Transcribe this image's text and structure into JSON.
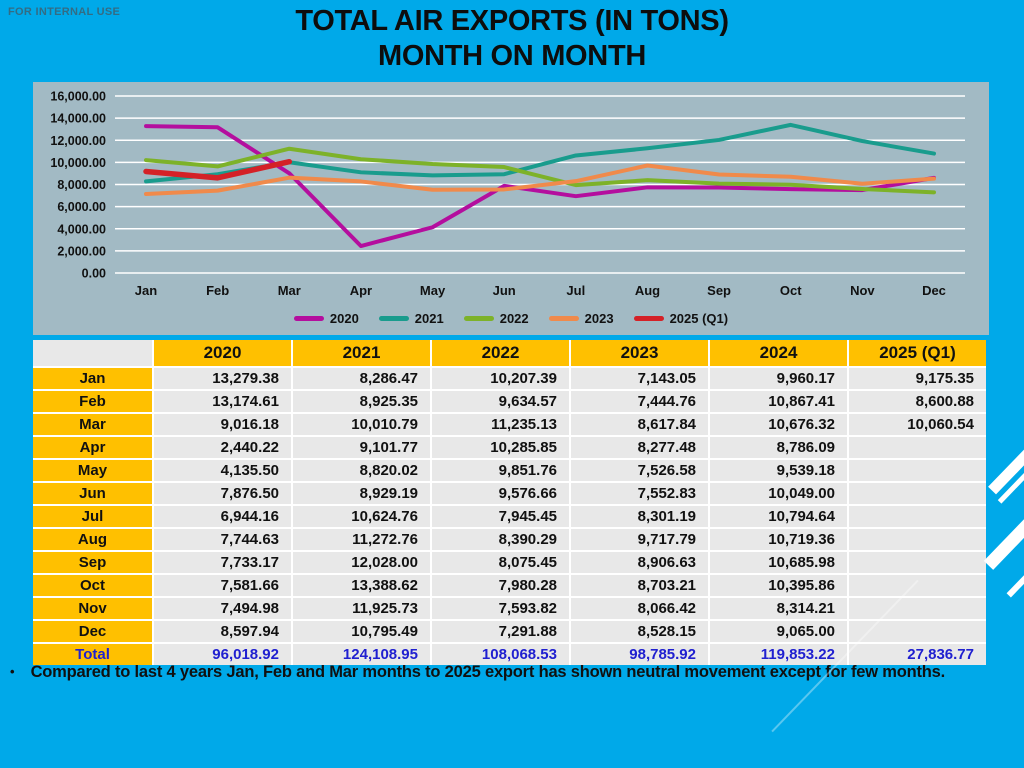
{
  "slide": {
    "watermark": "FOR INTERNAL USE",
    "title_line1": "TOTAL AIR EXPORTS (IN TONS)",
    "title_line2": "MONTH ON MONTH",
    "bullet_marker": "•",
    "bullet": "Compared to last 4 years Jan, Feb and Mar months to 2025 export has shown neutral movement except for few months."
  },
  "colors": {
    "background": "#00A9E9",
    "chart_panel": "#A2BAC4",
    "gridline": "#FFFFFF",
    "table_header_gold": "#FFC000",
    "table_cell_gray": "#E8E8E8",
    "total_text_blue": "#2020D0",
    "series_2020": "#B40E9E",
    "series_2021": "#199C8D",
    "series_2022": "#7DB229",
    "series_2023": "#F08A4B",
    "series_2025": "#D42127"
  },
  "chart_data": {
    "type": "line",
    "title": "",
    "xlabel": "",
    "ylabel": "",
    "categories": [
      "Jan",
      "Feb",
      "Mar",
      "Apr",
      "May",
      "Jun",
      "Jul",
      "Aug",
      "Sep",
      "Oct",
      "Nov",
      "Dec"
    ],
    "ylim": [
      0,
      16000
    ],
    "ytick_step": 2000,
    "grid": true,
    "legend_position": "bottom",
    "series": [
      {
        "name": "2020",
        "color": "#B40E9E",
        "width": 4,
        "values": [
          13279.38,
          13174.61,
          9016.18,
          2440.22,
          4135.5,
          7876.5,
          6944.16,
          7744.63,
          7733.17,
          7581.66,
          7494.98,
          8597.94
        ]
      },
      {
        "name": "2021",
        "color": "#199C8D",
        "width": 4,
        "values": [
          8286.47,
          8925.35,
          10010.79,
          9101.77,
          8820.02,
          8929.19,
          10624.76,
          11272.76,
          12028.0,
          13388.62,
          11925.73,
          10795.49
        ]
      },
      {
        "name": "2022",
        "color": "#7DB229",
        "width": 4,
        "values": [
          10207.39,
          9634.57,
          11235.13,
          10285.85,
          9851.76,
          9576.66,
          7945.45,
          8390.29,
          8075.45,
          7980.28,
          7593.82,
          7291.88
        ]
      },
      {
        "name": "2023",
        "color": "#F08A4B",
        "width": 4,
        "values": [
          7143.05,
          7444.76,
          8617.84,
          8277.48,
          7526.58,
          7552.83,
          8301.19,
          9717.79,
          8906.63,
          8703.21,
          8066.42,
          8528.15
        ]
      },
      {
        "name": "2025 (Q1)",
        "color": "#D42127",
        "width": 5.5,
        "values": [
          9175.35,
          8600.88,
          10060.54,
          null,
          null,
          null,
          null,
          null,
          null,
          null,
          null,
          null
        ]
      }
    ]
  },
  "table": {
    "columns": [
      "",
      "2020",
      "2021",
      "2022",
      "2023",
      "2024",
      "2025 (Q1)"
    ],
    "rows": [
      {
        "label": "Jan",
        "values": [
          "13,279.38",
          "8,286.47",
          "10,207.39",
          "7,143.05",
          "9,960.17",
          "9,175.35"
        ]
      },
      {
        "label": "Feb",
        "values": [
          "13,174.61",
          "8,925.35",
          "9,634.57",
          "7,444.76",
          "10,867.41",
          "8,600.88"
        ]
      },
      {
        "label": "Mar",
        "values": [
          "9,016.18",
          "10,010.79",
          "11,235.13",
          "8,617.84",
          "10,676.32",
          "10,060.54"
        ]
      },
      {
        "label": "Apr",
        "values": [
          "2,440.22",
          "9,101.77",
          "10,285.85",
          "8,277.48",
          "8,786.09",
          ""
        ]
      },
      {
        "label": "May",
        "values": [
          "4,135.50",
          "8,820.02",
          "9,851.76",
          "7,526.58",
          "9,539.18",
          ""
        ]
      },
      {
        "label": "Jun",
        "values": [
          "7,876.50",
          "8,929.19",
          "9,576.66",
          "7,552.83",
          "10,049.00",
          ""
        ]
      },
      {
        "label": "Jul",
        "values": [
          "6,944.16",
          "10,624.76",
          "7,945.45",
          "8,301.19",
          "10,794.64",
          ""
        ]
      },
      {
        "label": "Aug",
        "values": [
          "7,744.63",
          "11,272.76",
          "8,390.29",
          "9,717.79",
          "10,719.36",
          ""
        ]
      },
      {
        "label": "Sep",
        "values": [
          "7,733.17",
          "12,028.00",
          "8,075.45",
          "8,906.63",
          "10,685.98",
          ""
        ]
      },
      {
        "label": "Oct",
        "values": [
          "7,581.66",
          "13,388.62",
          "7,980.28",
          "8,703.21",
          "10,395.86",
          ""
        ]
      },
      {
        "label": "Nov",
        "values": [
          "7,494.98",
          "11,925.73",
          "7,593.82",
          "8,066.42",
          "8,314.21",
          ""
        ]
      },
      {
        "label": "Dec",
        "values": [
          "8,597.94",
          "10,795.49",
          "7,291.88",
          "8,528.15",
          "9,065.00",
          ""
        ]
      }
    ],
    "total": {
      "label": "Total",
      "values": [
        "96,018.92",
        "124,108.95",
        "108,068.53",
        "98,785.92",
        "119,853.22",
        "27,836.77"
      ]
    }
  }
}
